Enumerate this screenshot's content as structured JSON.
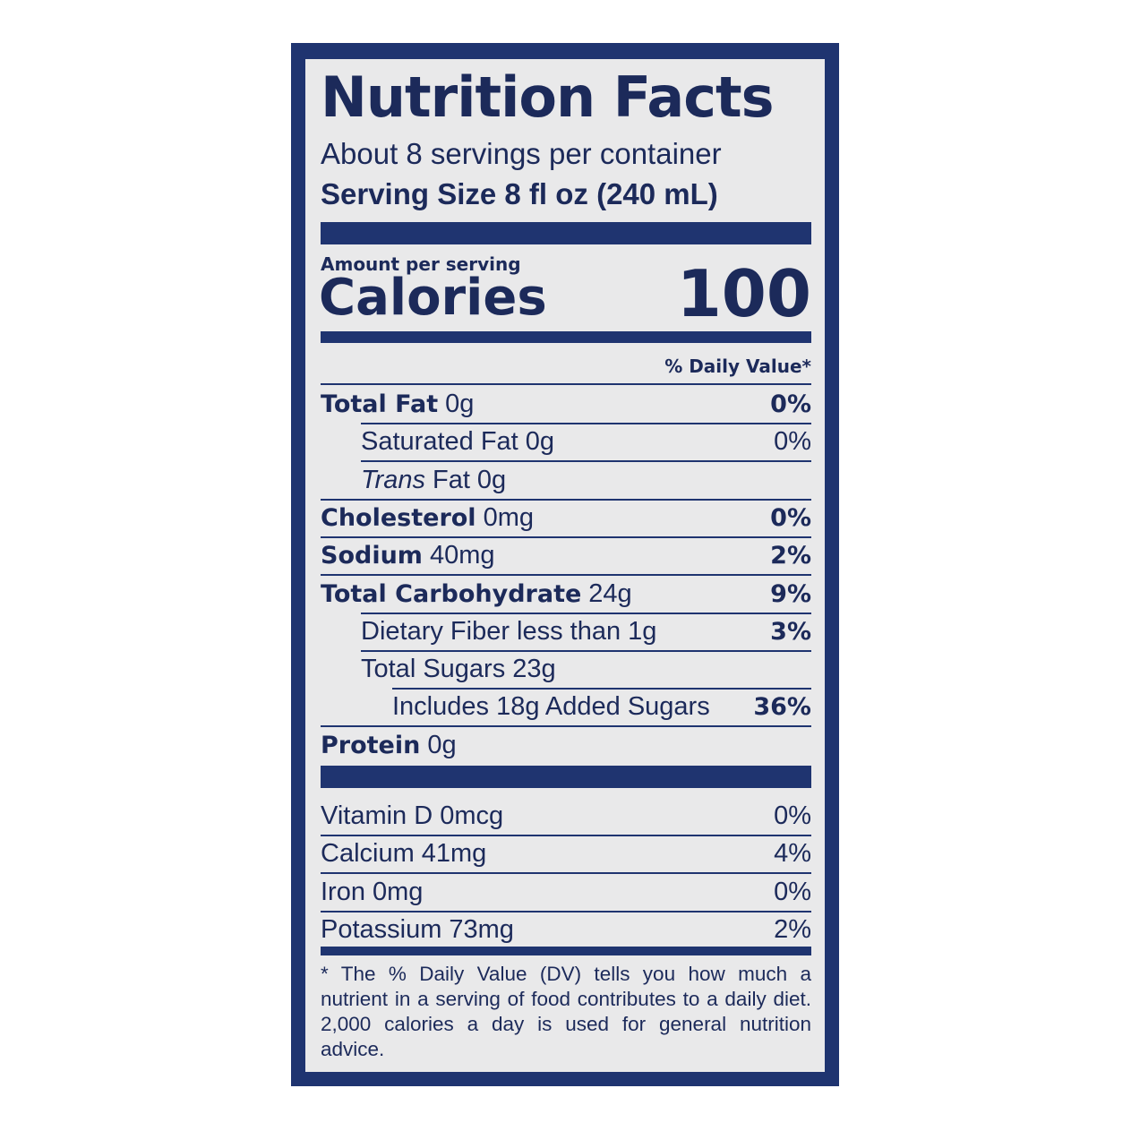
{
  "title": "Nutrition Facts",
  "servings": "About 8 servings per container",
  "serving_size": "Serving Size 8 fl oz (240 mL)",
  "amount_per_serving": "Amount per serving",
  "calories_label": "Calories",
  "calories_value": "100",
  "daily_value_header": "% Daily Value*",
  "nutrients": [
    {
      "label": "Total Fat",
      "amount": "0g",
      "dv": "0%"
    },
    {
      "label": "Saturated Fat",
      "amount": "0g",
      "dv": "0%"
    },
    {
      "label_italic": "Trans",
      "label": "Fat",
      "amount": "0g"
    },
    {
      "label": "Cholesterol",
      "amount": "0mg",
      "dv": "0%"
    },
    {
      "label": "Sodium",
      "amount": "40mg",
      "dv": "2%"
    },
    {
      "label": "Total Carbohydrate",
      "amount": "24g",
      "dv": "9%"
    },
    {
      "label": "Dietary Fiber less than",
      "amount": "1g",
      "dv": "3%"
    },
    {
      "label": "Total Sugars",
      "amount": "23g"
    },
    {
      "label": "Includes 18g Added Sugars",
      "dv": "36%"
    },
    {
      "label": "Protein",
      "amount": "0g"
    }
  ],
  "vitamins": [
    {
      "label": "Vitamin D",
      "amount": "0mcg",
      "dv": "0%"
    },
    {
      "label": "Calcium",
      "amount": "41mg",
      "dv": "4%"
    },
    {
      "label": "Iron",
      "amount": "0mg",
      "dv": "0%"
    },
    {
      "label": "Potassium",
      "amount": "73mg",
      "dv": "2%"
    }
  ],
  "footnote": "* The % Daily Value (DV) tells you how much a nutrient in a serving of food contributes to a daily diet. 2,000 calories a day is used for general nutrition advice."
}
